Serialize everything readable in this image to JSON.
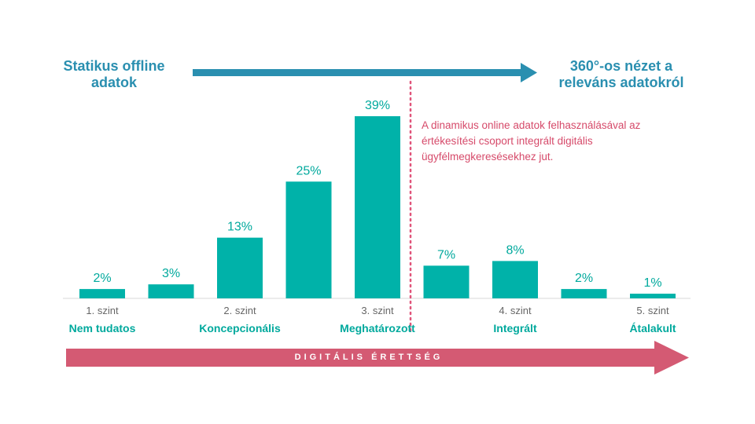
{
  "top_left_label": "Statikus offline adatok",
  "top_right_label": "360°-os nézet a releváns adatokról",
  "annotation": "A dinamikus online adatok felhasználásával az értékesítési csoport integrált digitális ügyfélmegkeresésekhez jut.",
  "bottom_axis_label": "DIGITÁLIS ÉRETTSÉG",
  "colors": {
    "bar": "#00b2a9",
    "top_arrow": "#2a8fb0",
    "bottom_arrow": "#d45a73",
    "divider": "#e0547a"
  },
  "chart_data": {
    "type": "bar",
    "values": [
      2,
      3,
      13,
      25,
      39,
      7,
      8,
      2,
      1
    ],
    "value_labels": [
      "2%",
      "3%",
      "13%",
      "25%",
      "39%",
      "7%",
      "8%",
      "2%",
      "1%"
    ],
    "levels": [
      {
        "under_bar": 0,
        "number": "1. szint",
        "name": "Nem tudatos"
      },
      {
        "under_bar": 2,
        "number": "2. szint",
        "name": "Koncepcionális"
      },
      {
        "under_bar": 4,
        "number": "3. szint",
        "name": "Meghatározott"
      },
      {
        "under_bar": 6,
        "number": "4. szint",
        "name": "Integrált"
      },
      {
        "under_bar": 8,
        "number": "5. szint",
        "name": "Átalakult"
      }
    ],
    "divider_after_bar": 4,
    "ylim": [
      0,
      39
    ],
    "grid": false
  }
}
